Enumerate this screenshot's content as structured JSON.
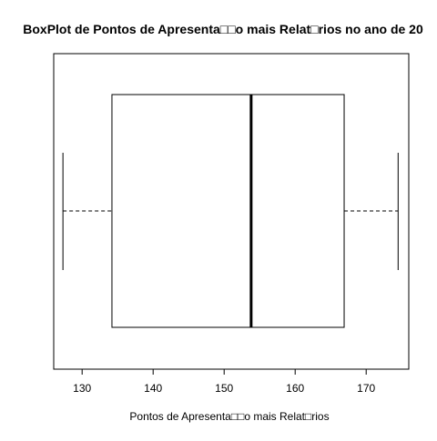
{
  "chart_data": {
    "type": "boxplot",
    "orientation": "horizontal",
    "title": "BoxPlot de Pontos de Apresenta□□o mais Relat□rios no ano de 20",
    "xlabel": "Pontos de Apresenta□□o mais Relat□rios",
    "ylabel": "",
    "xlim": [
      126,
      176
    ],
    "ticks": [
      130,
      140,
      150,
      160,
      170
    ],
    "tick_labels": [
      "130",
      "140",
      "150",
      "160",
      "170"
    ],
    "box": {
      "whisker_low": 127.3,
      "q1": 134.2,
      "median": 153.8,
      "q3": 166.9,
      "whisker_high": 174.5
    },
    "grid": false,
    "legend": "none",
    "colors": {
      "stroke": "#000000",
      "box_fill": "#ffffff",
      "background": "#ffffff"
    }
  }
}
